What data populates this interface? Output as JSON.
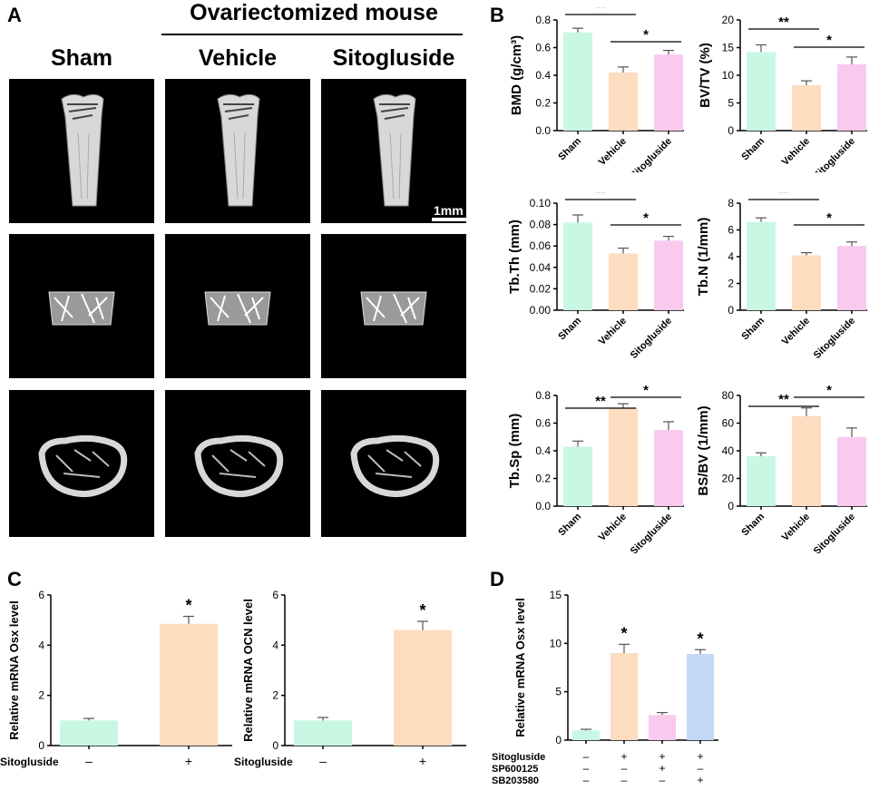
{
  "panelA": {
    "letter": "A",
    "header_group": "Ovariectomized mouse",
    "column_labels": [
      "Sham",
      "Vehicle",
      "Sitogluside"
    ],
    "scalebar_label": "1mm"
  },
  "panelB": {
    "letter": "B"
  },
  "panelC": {
    "letter": "C"
  },
  "panelD": {
    "letter": "D"
  },
  "colors": {
    "sham": "#c8f7e4",
    "vehicle": "#fddcbf",
    "sitogluside": "#f9c9ee",
    "blue": "#c4d8f8",
    "bone": "#d8d8d8"
  },
  "chart_data": [
    {
      "id": "bmd",
      "type": "bar",
      "categories": [
        "Sham",
        "Vehicle",
        "Sitogluside"
      ],
      "values": [
        0.71,
        0.42,
        0.55
      ],
      "errors": [
        0.03,
        0.04,
        0.03
      ],
      "ylabel": "BMD (g/cm³)",
      "ylim": [
        0,
        0.8
      ],
      "yticks": [
        "0.0",
        "0.2",
        "0.4",
        "0.6",
        "0.8"
      ],
      "significance": [
        {
          "from": 0,
          "to": 1,
          "label": "**"
        },
        {
          "from": 1,
          "to": 2,
          "label": "*"
        }
      ]
    },
    {
      "id": "bvtv",
      "type": "bar",
      "categories": [
        "Sham",
        "Vehicle",
        "Sitogluside"
      ],
      "values": [
        14.2,
        8.2,
        12.0
      ],
      "errors": [
        1.3,
        0.8,
        1.3
      ],
      "ylabel": "BV/TV (%)",
      "ylim": [
        0,
        20
      ],
      "yticks": [
        "0",
        "5",
        "10",
        "15",
        "20"
      ],
      "significance": [
        {
          "from": 0,
          "to": 1,
          "label": "**"
        },
        {
          "from": 1,
          "to": 2,
          "label": "*"
        }
      ]
    },
    {
      "id": "tbth",
      "type": "bar",
      "categories": [
        "Sham",
        "Vehicle",
        "Sitogluside"
      ],
      "values": [
        0.082,
        0.053,
        0.065
      ],
      "errors": [
        0.007,
        0.005,
        0.004
      ],
      "ylabel": "Tb.Th (mm)",
      "ylim": [
        0,
        0.1
      ],
      "yticks": [
        "0.00",
        "0.02",
        "0.04",
        "0.06",
        "0.08",
        "0.10"
      ],
      "significance": [
        {
          "from": 0,
          "to": 1,
          "label": "**"
        },
        {
          "from": 1,
          "to": 2,
          "label": "*"
        }
      ]
    },
    {
      "id": "tbn",
      "type": "bar",
      "categories": [
        "Sham",
        "Vehicle",
        "Sitogluside"
      ],
      "values": [
        6.6,
        4.1,
        4.8
      ],
      "errors": [
        0.3,
        0.2,
        0.3
      ],
      "ylabel": "Tb.N (1/mm)",
      "ylim": [
        0,
        8
      ],
      "yticks": [
        "0",
        "2",
        "4",
        "6",
        "8"
      ],
      "significance": [
        {
          "from": 0,
          "to": 1,
          "label": "**"
        },
        {
          "from": 1,
          "to": 2,
          "label": "*"
        }
      ]
    },
    {
      "id": "tbsp",
      "type": "bar",
      "categories": [
        "Sham",
        "Vehicle",
        "Sitogluside"
      ],
      "values": [
        0.43,
        0.71,
        0.55
      ],
      "errors": [
        0.04,
        0.03,
        0.06
      ],
      "ylabel": "Tb.Sp (mm)",
      "ylim": [
        0,
        0.8
      ],
      "yticks": [
        "0.0",
        "0.2",
        "0.4",
        "0.6",
        "0.8"
      ],
      "significance": [
        {
          "from": 0,
          "to": 1,
          "label": "**"
        },
        {
          "from": 1,
          "to": 2,
          "label": "*"
        }
      ]
    },
    {
      "id": "bsbv",
      "type": "bar",
      "categories": [
        "Sham",
        "Vehicle",
        "Sitogluside"
      ],
      "values": [
        36,
        65,
        50
      ],
      "errors": [
        2.5,
        6,
        6.5
      ],
      "ylabel": "BS/BV (1/mm)",
      "ylim": [
        0,
        80
      ],
      "yticks": [
        "0",
        "20",
        "40",
        "60",
        "80"
      ],
      "significance": [
        {
          "from": 0,
          "to": 1,
          "label": "**"
        },
        {
          "from": 1,
          "to": 2,
          "label": "*"
        }
      ]
    },
    {
      "id": "osx",
      "type": "bar",
      "categories": [
        "–",
        "+"
      ],
      "row_label": "Sitogluside",
      "values": [
        1.0,
        4.85
      ],
      "errors": [
        0.08,
        0.3
      ],
      "ylabel": "Relative mRNA Osx level",
      "ylim": [
        0,
        6
      ],
      "yticks": [
        "0",
        "2",
        "4",
        "6"
      ],
      "stars": [
        "",
        "*"
      ]
    },
    {
      "id": "ocn",
      "type": "bar",
      "categories": [
        "–",
        "+"
      ],
      "row_label": "Sitogluside",
      "values": [
        1.0,
        4.6
      ],
      "errors": [
        0.12,
        0.35
      ],
      "ylabel": "Relative mRNA OCN level",
      "ylim": [
        0,
        6
      ],
      "yticks": [
        "0",
        "2",
        "4",
        "6"
      ],
      "stars": [
        "",
        "*"
      ]
    },
    {
      "id": "osx2",
      "type": "bar",
      "values": [
        1.0,
        9.0,
        2.6,
        8.9
      ],
      "errors": [
        0.12,
        0.9,
        0.25,
        0.45
      ],
      "ylabel": "Relative mRNA Osx level",
      "ylim": [
        0,
        15
      ],
      "yticks": [
        "0",
        "5",
        "10",
        "15"
      ],
      "stars": [
        "",
        "*",
        "",
        "*"
      ],
      "rows": [
        {
          "label": "Sitogluside",
          "marks": [
            "–",
            "+",
            "+",
            "+"
          ]
        },
        {
          "label": "SP600125",
          "marks": [
            "–",
            "–",
            "+",
            "–"
          ]
        },
        {
          "label": "SB203580",
          "marks": [
            "–",
            "–",
            "–",
            "+"
          ]
        }
      ]
    }
  ]
}
